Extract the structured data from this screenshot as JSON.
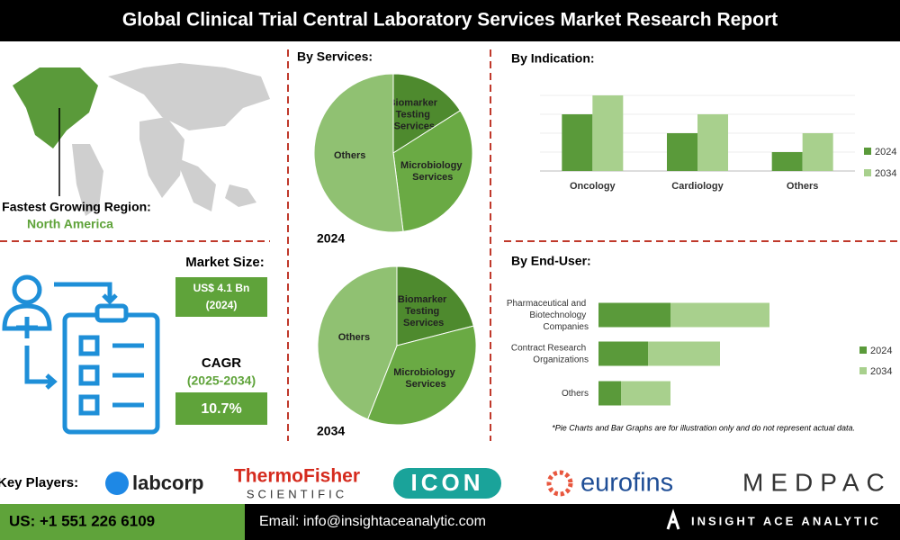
{
  "header": {
    "title": "Global Clinical Trial Central Laboratory Services Market Research Report"
  },
  "region": {
    "label": "Fastest Growing Region:",
    "value": "North America"
  },
  "market": {
    "size_label": "Market Size:",
    "size_value": "US$ 4.1 Bn",
    "size_year": "(2024)",
    "cagr_label": "CAGR",
    "cagr_period": "(2025-2034)",
    "cagr_value": "10.7%"
  },
  "chart_data": [
    {
      "type": "pie",
      "title": "By Services:",
      "label": "2024",
      "categories": [
        "Biomarker Testing Services",
        "Microbiology Services",
        "Others"
      ],
      "values": [
        16,
        32,
        52
      ],
      "colors": [
        "#4e8a2e",
        "#6aaa44",
        "#90c172"
      ]
    },
    {
      "type": "pie",
      "label": "2034",
      "categories": [
        "Biomarker Testing Services",
        "Microbiology Services",
        "Others"
      ],
      "values": [
        21,
        35,
        44
      ],
      "colors": [
        "#4e8a2e",
        "#6aaa44",
        "#90c172"
      ]
    },
    {
      "type": "bar",
      "title": "By Indication:",
      "categories": [
        "Oncology",
        "Cardiology",
        "Others"
      ],
      "series": [
        {
          "name": "2024",
          "color": "#5a9a3a",
          "values": [
            60,
            40,
            20
          ]
        },
        {
          "name": "2034",
          "color": "#a8d08d",
          "values": [
            80,
            60,
            40
          ]
        }
      ],
      "ylim": [
        0,
        100
      ],
      "grid": true
    },
    {
      "type": "hbar",
      "title": "By End-User:",
      "categories": [
        "Pharmaceutical and Biotechnology Companies",
        "Contract Research Organizations",
        "Others"
      ],
      "series": [
        {
          "name": "2024",
          "color": "#5a9a3a",
          "values": [
            80,
            55,
            25
          ]
        },
        {
          "name": "2034",
          "color": "#a8d08d",
          "values": [
            110,
            80,
            55
          ]
        }
      ],
      "xlim": [
        0,
        300
      ],
      "stacked": true
    }
  ],
  "note": "*Pie Charts and Bar Graphs are for illustration only and do not represent actual data.",
  "key_players": {
    "label": "Key Players:",
    "companies": [
      "labcorp",
      "ThermoFisher",
      "SCIENTIFIC",
      "ICON",
      "eurofins",
      "MEDPAC"
    ]
  },
  "footer": {
    "phone": "US: +1 551 226 6109",
    "email": "Email: info@insightaceanalytic.com",
    "brand": "INSIGHT ACE ANALYTIC"
  }
}
